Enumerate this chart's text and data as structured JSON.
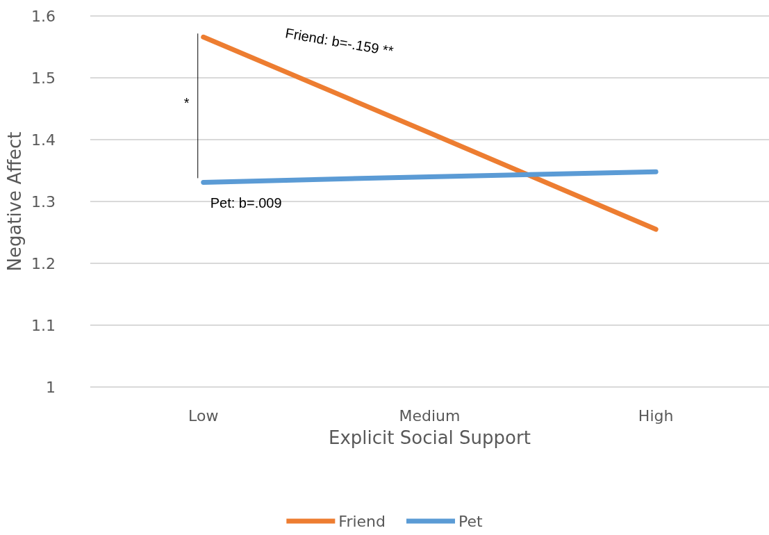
{
  "chart_data": {
    "type": "line",
    "xlabel": "Explicit Social Support",
    "ylabel": "Negative Affect",
    "categories": [
      "Low",
      "Medium",
      "High"
    ],
    "series": [
      {
        "name": "Friend",
        "color": "#ed7d31",
        "values": [
          1.566,
          1.411,
          1.255
        ]
      },
      {
        "name": "Pet",
        "color": "#5b9bd5",
        "values": [
          1.331,
          1.34,
          1.348
        ]
      }
    ],
    "ylim": [
      1,
      1.6
    ],
    "yticks": [
      1,
      1.1,
      1.2,
      1.3,
      1.4,
      1.5,
      1.6
    ],
    "grid": "y",
    "legend": "bottom",
    "marker": "none",
    "line_style": "solid",
    "annotations": [
      "Friend: b=-.159 **",
      "Pet: b=.009",
      "*"
    ]
  }
}
